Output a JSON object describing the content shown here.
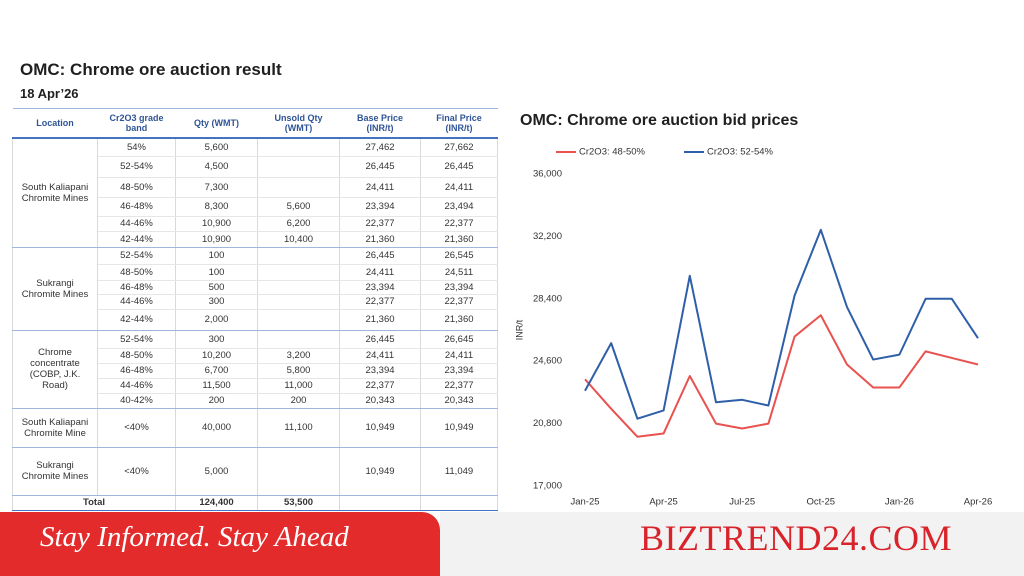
{
  "table": {
    "title": "OMC: Chrome ore auction result",
    "date": "18 Apr’26",
    "columns": [
      "Location",
      "Cr2O3 grade band",
      "Qty (WMT)",
      "Unsold Qty (WMT)",
      "Base Price (INR/t)",
      "Final Price (INR/t)"
    ],
    "groups": [
      {
        "location": "South Kaliapani Chromite Mines",
        "rows": [
          {
            "grade": "54%",
            "qty": "5,600",
            "base": "27,462",
            "final": "27,662"
          },
          {
            "grade": "52-54%",
            "qty": "4,500",
            "base": "26,445",
            "final": "26,445"
          },
          {
            "grade": "48-50%",
            "qty": "7,300",
            "base": "24,411",
            "final": "24,411"
          },
          {
            "grade": "46-48%",
            "qty": "8,300",
            "unsold": "5,600",
            "base": "23,394",
            "final": "23,494"
          },
          {
            "grade": "44-46%",
            "qty": "10,900",
            "unsold": "6,200",
            "base": "22,377",
            "final": "22,377"
          },
          {
            "grade": "42-44%",
            "qty": "10,900",
            "unsold": "10,400",
            "base": "21,360",
            "final": "21,360"
          }
        ]
      },
      {
        "location": "Sukrangi Chromite Mines",
        "rows": [
          {
            "grade": "52-54%",
            "qty": "100",
            "base": "26,445",
            "final": "26,545"
          },
          {
            "grade": "48-50%",
            "qty": "100",
            "base": "24,411",
            "final": "24,511"
          },
          {
            "grade": "46-48%",
            "qty": "500",
            "base": "23,394",
            "final": "23,394"
          },
          {
            "grade": "44-46%",
            "qty": "300",
            "base": "22,377",
            "final": "22,377"
          },
          {
            "grade": "42-44%",
            "qty": "2,000",
            "base": "21,360",
            "final": "21,360"
          }
        ]
      },
      {
        "location": "Chrome concentrate (COBP, J.K. Road)",
        "rows": [
          {
            "grade": "52-54%",
            "qty": "300",
            "base": "26,445",
            "final": "26,645"
          },
          {
            "grade": "48-50%",
            "qty": "10,200",
            "unsold": "3,200",
            "base": "24,411",
            "final": "24,411"
          },
          {
            "grade": "46-48%",
            "qty": "6,700",
            "unsold": "5,800",
            "base": "23,394",
            "final": "23,394"
          },
          {
            "grade": "44-46%",
            "qty": "11,500",
            "unsold": "11,000",
            "base": "22,377",
            "final": "22,377"
          },
          {
            "grade": "40-42%",
            "qty": "200",
            "unsold": "200",
            "base": "20,343",
            "final": "20,343"
          }
        ]
      },
      {
        "location": "South Kaliapani Chromite Mine",
        "rows": [
          {
            "grade": "<40%",
            "qty": "40,000",
            "unsold": "11,100",
            "base": "10,949",
            "final": "10,949"
          }
        ]
      },
      {
        "location": "Sukrangi Chromite Mines",
        "rows": [
          {
            "grade": "<40%",
            "qty": "5,000",
            "base": "10,949",
            "final": "11,049"
          }
        ]
      }
    ],
    "total": {
      "label": "Total",
      "qty": "124,400",
      "unsold": "53,500"
    }
  },
  "chart_data": {
    "type": "line",
    "title": "OMC: Chrome ore auction bid prices",
    "y_label": "INR/t",
    "categories": [
      "Jan-25",
      null,
      null,
      "Apr-25",
      null,
      null,
      "Jul-25",
      null,
      null,
      "Oct-25",
      null,
      null,
      "Jan-26",
      null,
      null,
      "Apr-26"
    ],
    "series": [
      {
        "name": "Cr2O3: 48-50%",
        "color": "#e8524f",
        "values": [
          23500,
          21700,
          20000,
          20200,
          23700,
          20800,
          20500,
          20800,
          26100,
          27400,
          24400,
          23000,
          23000,
          25200,
          24800,
          24400
        ]
      },
      {
        "name": "Cr2O3: 52-54%",
        "color": "#2e5fa8",
        "values": [
          22800,
          25700,
          21100,
          21600,
          29800,
          22100,
          22250,
          21900,
          28600,
          32600,
          27900,
          24700,
          25000,
          28400,
          28400,
          26000
        ]
      }
    ],
    "ylim": [
      17000,
      36000
    ],
    "yticks": [
      {
        "value": 17000,
        "label": "17,000"
      },
      {
        "value": 20800,
        "label": "20,800"
      },
      {
        "value": 24600,
        "label": "24,600"
      },
      {
        "value": 28400,
        "label": "28,400"
      },
      {
        "value": 32200,
        "label": "32,200"
      },
      {
        "value": 36000,
        "label": "36,000"
      }
    ],
    "grid": false,
    "legend": "top"
  },
  "footer": {
    "tagline": "Stay Informed. Stay Ahead",
    "brand": "BIZTREND24.COM"
  }
}
